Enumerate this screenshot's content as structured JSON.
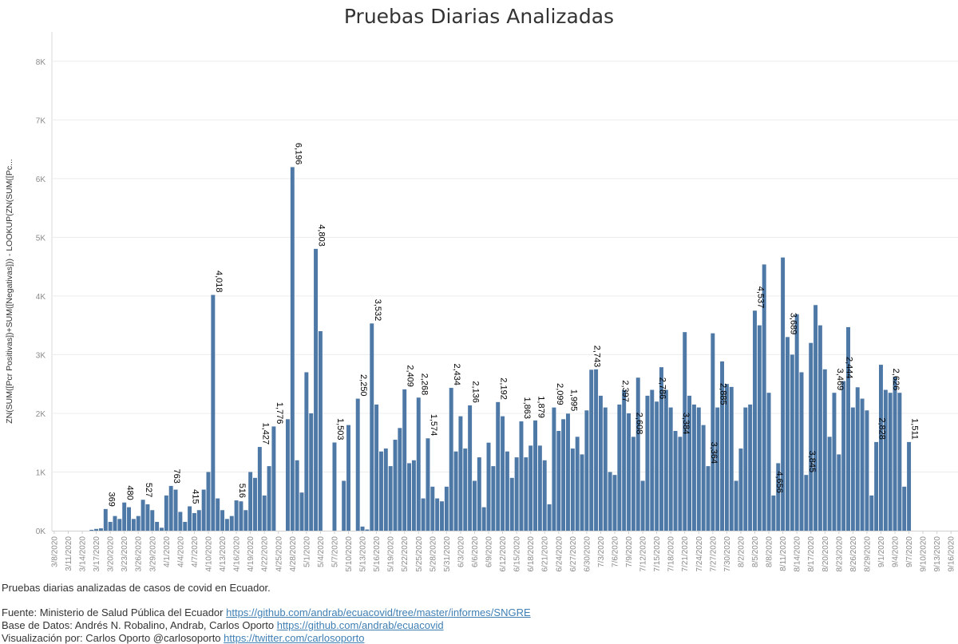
{
  "title": "Pruebas Diarias Analizadas",
  "notes": {
    "description": "Pruebas diarias analizadas de casos de covid en Ecuador.",
    "source_label": "Fuente: Ministerio de Salud Pública del Ecuador",
    "source_link": "https://github.com/andrab/ecuacovid/tree/master/informes/SNGRE",
    "database_label": "Base de Datos: Andrés N. Robalino, Andrab, Carlos Oporto",
    "database_link": "https://github.com/andrab/ecuacovid",
    "viz_label": "Visualización por: Carlos Oporto @carlosoporto",
    "viz_link": "https://twitter.com/carlosoporto"
  },
  "colors": {
    "bar": "#4e79a7",
    "grid": "#ececec",
    "tick": "#8a8a8a",
    "label": "#000000"
  },
  "chart_data": {
    "type": "bar",
    "title": "Pruebas Diarias Analizadas",
    "ylabel": "ZN(SUM([Pcr Positivas])+SUM([Negativas])) - LOOKUP(ZN(SUM([Pc...",
    "xlabel": "",
    "ylim": [
      0,
      8500
    ],
    "yticks": [
      0,
      1000,
      2000,
      3000,
      4000,
      5000,
      6000,
      7000,
      8000
    ],
    "ytick_labels": [
      "0K",
      "1K",
      "2K",
      "3K",
      "4K",
      "5K",
      "6K",
      "7K",
      "8K"
    ],
    "grid": true,
    "x_start": "3/8/2020",
    "x_tick_labels": [
      "3/8/2020",
      "3/11/2020",
      "3/14/2020",
      "3/17/2020",
      "3/20/2020",
      "3/23/2020",
      "3/26/2020",
      "3/29/2020",
      "4/1/2020",
      "4/4/2020",
      "4/7/2020",
      "4/10/2020",
      "4/13/2020",
      "4/16/2020",
      "4/19/2020",
      "4/22/2020",
      "4/25/2020",
      "4/28/2020",
      "5/1/2020",
      "5/4/2020",
      "5/7/2020",
      "5/10/2020",
      "5/13/2020",
      "5/16/2020",
      "5/19/2020",
      "5/22/2020",
      "5/25/2020",
      "5/28/2020",
      "5/31/2020",
      "6/3/2020",
      "6/6/2020",
      "6/9/2020",
      "6/12/2020",
      "6/15/2020",
      "6/18/2020",
      "6/21/2020",
      "6/24/2020",
      "6/27/2020",
      "6/30/2020",
      "7/3/2020",
      "7/6/2020",
      "7/9/2020",
      "7/12/2020",
      "7/15/2020",
      "7/18/2020",
      "7/21/2020",
      "7/24/2020",
      "7/27/2020",
      "7/30/2020",
      "8/2/2020",
      "8/5/2020",
      "8/8/2020",
      "8/11/2020",
      "8/14/2020",
      "8/17/2020",
      "8/20/2020",
      "8/23/2020",
      "8/26/2020",
      "8/29/2020",
      "9/1/2020",
      "9/4/2020",
      "9/7/2020",
      "9/10/2020",
      "9/13/2020",
      "9/16/2020"
    ],
    "values": [
      null,
      null,
      null,
      null,
      null,
      null,
      null,
      null,
      15,
      30,
      40,
      369,
      150,
      250,
      200,
      480,
      400,
      200,
      250,
      527,
      450,
      350,
      150,
      50,
      600,
      763,
      700,
      320,
      150,
      415,
      300,
      350,
      700,
      1000,
      4018,
      550,
      350,
      200,
      250,
      516,
      500,
      350,
      1000,
      900,
      1427,
      600,
      1100,
      1776,
      null,
      null,
      1900,
      6196,
      1200,
      650,
      2700,
      2000,
      4803,
      3400,
      null,
      null,
      1503,
      null,
      850,
      1800,
      null,
      2250,
      70,
      20,
      3532,
      2150,
      1350,
      1400,
      1100,
      1550,
      1750,
      2409,
      1150,
      1200,
      2268,
      550,
      1574,
      750,
      550,
      500,
      750,
      2434,
      1350,
      1950,
      1400,
      2136,
      850,
      1250,
      400,
      1500,
      1100,
      2192,
      1950,
      1350,
      900,
      1250,
      1863,
      1250,
      1450,
      1879,
      1450,
      1200,
      450,
      2099,
      1700,
      1900,
      1995,
      1400,
      1600,
      1300,
      2050,
      2743,
      2750,
      2300,
      2100,
      1000,
      950,
      2150,
      2397,
      2000,
      1600,
      2608,
      850,
      2300,
      2400,
      2200,
      2786,
      2400,
      2100,
      1700,
      1600,
      3384,
      2300,
      2150,
      2100,
      1800,
      1100,
      3364,
      2100,
      2885,
      2500,
      2450,
      850,
      1400,
      2100,
      2150,
      3750,
      3500,
      4537,
      2350,
      600,
      1150,
      4656,
      3300,
      3000,
      3689,
      2700,
      950,
      3200,
      3845,
      3500,
      2750,
      1600,
      2350,
      1300,
      2550,
      3469,
      2100,
      2444,
      2250,
      2050,
      600,
      1511,
      2828,
      2400,
      2350,
      2626,
      2350,
      750,
      1511,
      null,
      null,
      null,
      null,
      null,
      null,
      null,
      null,
      null,
      null
    ],
    "data_labels": {
      "11": "369",
      "15": "480",
      "19": "527",
      "25": "763",
      "29": "415",
      "34": "4,018",
      "39": "516",
      "44": "1,427",
      "47": "1,776",
      "51": "6,196",
      "56": "4,803",
      "60": "1,503",
      "65": "2,250",
      "68": "3,532",
      "75": "2,409",
      "78": "2,268",
      "80": "1,574",
      "85": "2,434",
      "89": "2,136",
      "95": "2,192",
      "100": "1,863",
      "103": "1,879",
      "107": "2,099",
      "110": "1,995",
      "115": "2,743",
      "121": "2,397",
      "124": "2,608",
      "129": "2,786",
      "134": "3,384",
      "140": "3,364",
      "142": "2,885",
      "150": "4,537",
      "154": "4,656",
      "157": "3,689",
      "161": "3,845",
      "167": "3,469",
      "169": "2,444",
      "176": "2,828",
      "179": "2,626",
      "183": "1,511"
    }
  }
}
